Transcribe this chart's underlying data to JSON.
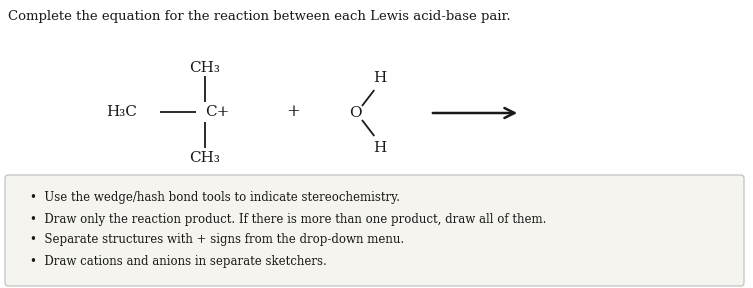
{
  "title": "Complete the equation for the reaction between each Lewis acid-base pair.",
  "title_fontsize": 9.5,
  "title_color": "#1a1a1a",
  "background_color": "#ffffff",
  "box_background": "#f5f4ef",
  "box_edge_color": "#bbbbbb",
  "bullet_points": [
    "Use the wedge/hash bond tools to indicate stereochemistry.",
    "Draw only the reaction product. If there is more than one product, draw all of them.",
    "Separate structures with + signs from the drop-down menu.",
    "Draw cations and anions in separate sketchers."
  ],
  "bullet_fontsize": 8.5,
  "ch3_label": "CH₃",
  "h3c_label": "H₃C",
  "c_plus": "C+",
  "water_O": "O",
  "water_H": "H",
  "plus_sign": "+",
  "arrow_color": "#1a1a1a",
  "text_color": "#1a1a1a",
  "chem_fontsize": 11
}
